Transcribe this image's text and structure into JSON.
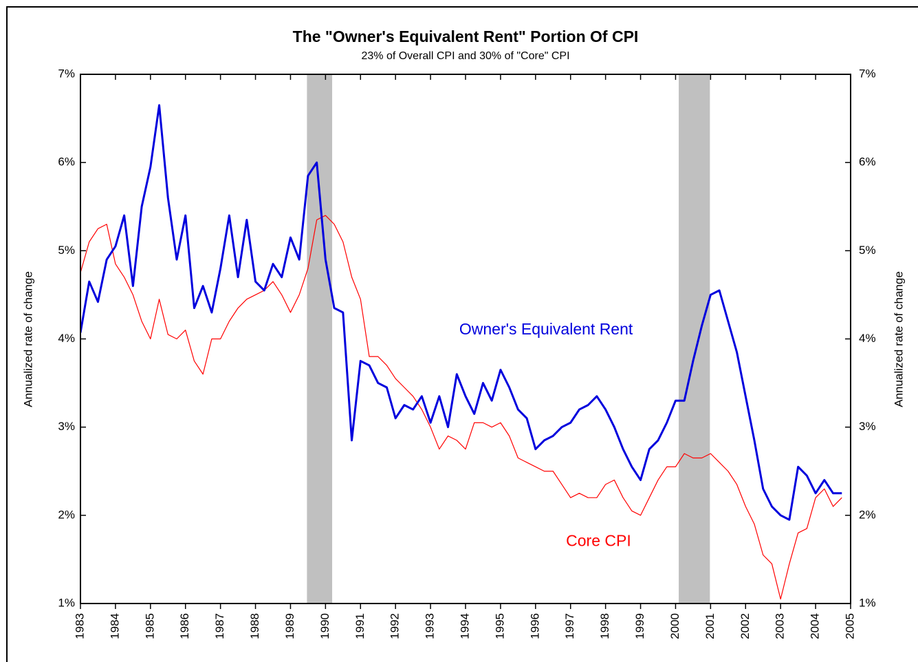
{
  "chart_data": {
    "type": "line",
    "title": "The \"Owner's Equivalent Rent\" Portion Of CPI",
    "subtitle": "23% of Overall CPI and 30% of \"Core\" CPI",
    "ylabel": "Annualized rate of change",
    "x": [
      1983,
      1983.25,
      1983.5,
      1983.75,
      1984,
      1984.25,
      1984.5,
      1984.75,
      1985,
      1985.25,
      1985.5,
      1985.75,
      1986,
      1986.25,
      1986.5,
      1986.75,
      1987,
      1987.25,
      1987.5,
      1987.75,
      1988,
      1988.25,
      1988.5,
      1988.75,
      1989,
      1989.25,
      1989.5,
      1989.75,
      1990,
      1990.25,
      1990.5,
      1990.75,
      1991,
      1991.25,
      1991.5,
      1991.75,
      1992,
      1992.25,
      1992.5,
      1992.75,
      1993,
      1993.25,
      1993.5,
      1993.75,
      1994,
      1994.25,
      1994.5,
      1994.75,
      1995,
      1995.25,
      1995.5,
      1995.75,
      1996,
      1996.25,
      1996.5,
      1996.75,
      1997,
      1997.25,
      1997.5,
      1997.75,
      1998,
      1998.25,
      1998.5,
      1998.75,
      1999,
      1999.25,
      1999.5,
      1999.75,
      2000,
      2000.25,
      2000.5,
      2000.75,
      2001,
      2001.25,
      2001.5,
      2001.75,
      2002,
      2002.25,
      2002.5,
      2002.75,
      2003,
      2003.25,
      2003.5,
      2003.75,
      2004,
      2004.25,
      2004.5,
      2004.75
    ],
    "series": [
      {
        "name": "Owner's Equivalent Rent",
        "color": "#0000dd",
        "width": 3,
        "values": [
          4.07,
          4.65,
          4.42,
          4.9,
          5.05,
          5.4,
          4.6,
          5.5,
          5.95,
          6.65,
          5.6,
          4.9,
          5.4,
          4.35,
          4.6,
          4.3,
          4.8,
          5.4,
          4.7,
          5.35,
          4.65,
          4.55,
          4.85,
          4.7,
          5.15,
          4.9,
          5.85,
          6.0,
          4.9,
          4.35,
          4.3,
          2.85,
          3.75,
          3.7,
          3.5,
          3.45,
          3.1,
          3.25,
          3.2,
          3.35,
          3.05,
          3.35,
          3.0,
          3.6,
          3.35,
          3.15,
          3.5,
          3.3,
          3.65,
          3.45,
          3.2,
          3.1,
          2.75,
          2.85,
          2.9,
          3.0,
          3.05,
          3.2,
          3.25,
          3.35,
          3.2,
          3.0,
          2.75,
          2.55,
          2.4,
          2.75,
          2.85,
          3.05,
          3.3,
          3.3,
          3.75,
          4.15,
          4.5,
          4.55,
          4.2,
          3.85,
          3.35,
          2.85,
          2.3,
          2.1,
          2.0,
          1.95,
          2.55,
          2.45,
          2.25,
          2.4,
          2.25,
          2.25
        ]
      },
      {
        "name": "Core CPI",
        "color": "#ff0000",
        "width": 1.2,
        "values": [
          4.75,
          5.1,
          5.25,
          5.3,
          4.85,
          4.7,
          4.5,
          4.2,
          4.0,
          4.45,
          4.05,
          4.0,
          4.1,
          3.75,
          3.6,
          4.0,
          4.0,
          4.2,
          4.35,
          4.45,
          4.5,
          4.55,
          4.65,
          4.5,
          4.3,
          4.5,
          4.8,
          5.35,
          5.4,
          5.3,
          5.1,
          4.7,
          4.45,
          3.8,
          3.8,
          3.7,
          3.55,
          3.45,
          3.35,
          3.2,
          3.0,
          2.75,
          2.9,
          2.85,
          2.75,
          3.05,
          3.05,
          3.0,
          3.05,
          2.9,
          2.65,
          2.6,
          2.55,
          2.5,
          2.5,
          2.35,
          2.2,
          2.25,
          2.2,
          2.2,
          2.35,
          2.4,
          2.2,
          2.05,
          2.0,
          2.2,
          2.4,
          2.55,
          2.55,
          2.7,
          2.65,
          2.65,
          2.7,
          2.6,
          2.5,
          2.35,
          2.1,
          1.9,
          1.55,
          1.45,
          1.05,
          1.45,
          1.8,
          1.85,
          2.2,
          2.3,
          2.1,
          2.2
        ]
      }
    ],
    "annotations": [
      {
        "text": "Owner's Equivalent Rent",
        "x": 1996.3,
        "y": 4.1,
        "color": "#0000dd"
      },
      {
        "text": "Core CPI",
        "x": 1997.8,
        "y": 1.7,
        "color": "#ff0000"
      }
    ],
    "recessions": [
      [
        1989.47,
        1990.19
      ],
      [
        2000.09,
        2000.98
      ]
    ],
    "recession_color": "#c0c0c0",
    "xlim": [
      1983,
      2005
    ],
    "xticks": [
      1983,
      1984,
      1985,
      1986,
      1987,
      1988,
      1989,
      1990,
      1991,
      1992,
      1993,
      1994,
      1995,
      1996,
      1997,
      1998,
      1999,
      2000,
      2001,
      2002,
      2003,
      2004,
      2005
    ],
    "ylim": [
      1,
      7
    ],
    "yticks": [
      {
        "value": 1,
        "label": "1%"
      },
      {
        "value": 2,
        "label": "2%"
      },
      {
        "value": 3,
        "label": "3%"
      },
      {
        "value": 4,
        "label": "4%"
      },
      {
        "value": 5,
        "label": "5%"
      },
      {
        "value": 6,
        "label": "6%"
      },
      {
        "value": 7,
        "label": "7%"
      }
    ],
    "secondary_axis_mirror": true
  }
}
